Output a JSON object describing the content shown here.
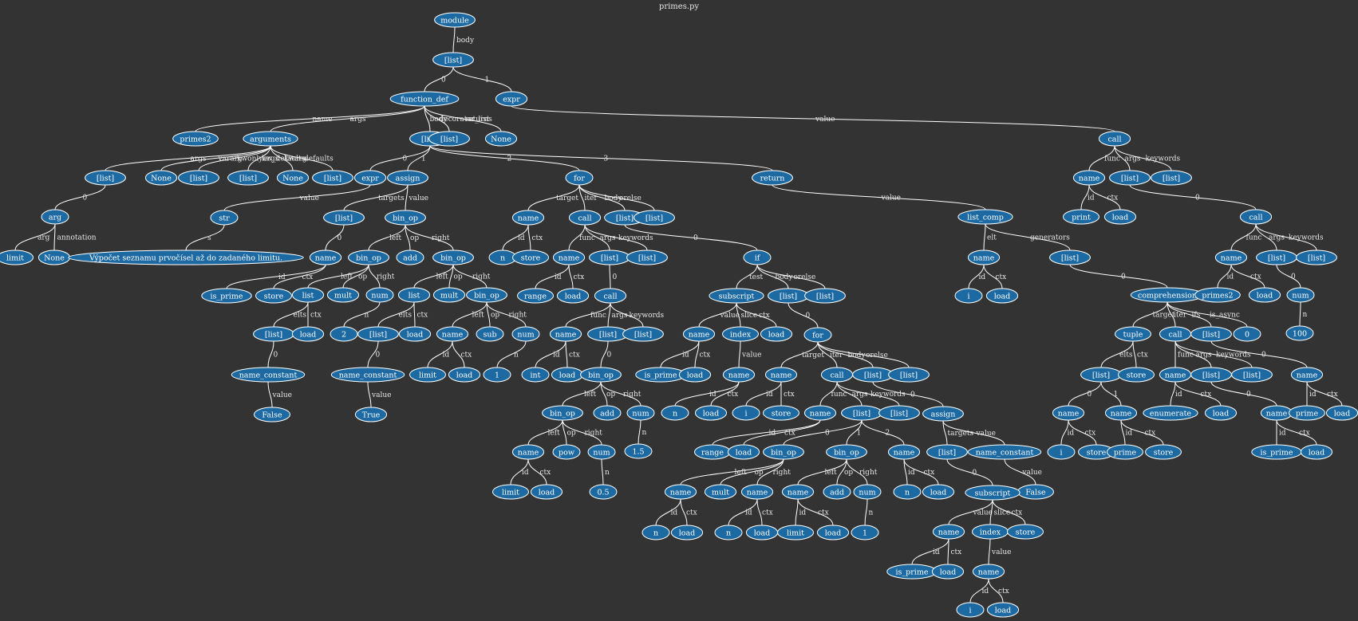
{
  "title": "primes.py",
  "colors": {
    "background": "#333333",
    "node_fill": "#1d6aa3",
    "node_stroke": "#ffffff",
    "edge": "#ffffff",
    "text": "#e6e6e6"
  },
  "nodes": {
    "n1": "module",
    "n2": "[list]",
    "n3": "function_def",
    "n4": "expr",
    "n5": "primes2",
    "n6": "arguments",
    "n7": "[list]",
    "n8": "[list]",
    "n9": "None",
    "n10": "call",
    "n11": "[list]",
    "n12": "None",
    "n13": "[list]",
    "n14": "[list]",
    "n15": "None",
    "n16": "[list]",
    "n17": "arg",
    "n18": "limit",
    "n19": "None",
    "n20": "expr",
    "n21": "assign",
    "n22": "for",
    "n23": "return",
    "n24": "str",
    "n25": "Výpočet seznamu prvočísel až do zadaného limitu.",
    "n26": "[list]",
    "n27": "bin_op",
    "n28": "name",
    "n29": "is_prime",
    "n30": "store",
    "n31": "bin_op",
    "n32": "add",
    "n33": "bin_op",
    "n34": "list",
    "n35": "mult",
    "n36": "num",
    "n37": "[list]",
    "n38": "load",
    "n39": "2",
    "n40": "name_constant",
    "n41": "False",
    "n42": "list",
    "n43": "mult",
    "n44": "bin_op",
    "n45": "[list]",
    "n46": "load",
    "n47": "name_constant",
    "n48": "True",
    "n49": "name",
    "n50": "sub",
    "n51": "num",
    "n52": "limit",
    "n53": "load",
    "n54": "1",
    "n55": "name",
    "n56": "call",
    "n57": "[list]",
    "n58": "[list]",
    "n59": "n",
    "n60": "store",
    "n61": "name",
    "n62": "[list]",
    "n63": "[list]",
    "n64": "range",
    "n65": "load",
    "n66": "call",
    "n67": "name",
    "n68": "[list]",
    "n69": "[list]",
    "n70": "int",
    "n71": "load",
    "n72": "bin_op",
    "n73": "bin_op",
    "n74": "add",
    "n75": "num",
    "n76": "name",
    "n77": "pow",
    "n78": "num",
    "n79": "limit",
    "n80": "load",
    "n81": "0.5",
    "n82": "1.5",
    "n83": "if",
    "n84": "subscript",
    "n85": "[list]",
    "n86": "[list]",
    "n87": "name",
    "n88": "index",
    "n89": "load",
    "n90": "is_prime",
    "n91": "load",
    "n92": "name",
    "n93": "n",
    "n94": "load",
    "n95": "for",
    "n96": "name",
    "n97": "call",
    "n98": "[list]",
    "n99": "[list]",
    "n100": "i",
    "n101": "store",
    "n102": "name",
    "n103": "[list]",
    "n104": "[list]",
    "n105": "range",
    "n106": "load",
    "n107": "bin_op",
    "n108": "bin_op",
    "n109": "name",
    "n110": "name",
    "n111": "mult",
    "n112": "name",
    "n113": "n",
    "n114": "load",
    "n115": "n",
    "n116": "load",
    "n117": "name",
    "n118": "add",
    "n119": "num",
    "n120": "limit",
    "n121": "load",
    "n122": "1",
    "n123": "n",
    "n124": "load",
    "n125": "assign",
    "n126": "[list]",
    "n127": "name_constant",
    "n128": "False",
    "n129": "subscript",
    "n130": "name",
    "n131": "index",
    "n132": "store",
    "n133": "is_prime",
    "n134": "load",
    "n135": "name",
    "n136": "i",
    "n137": "load",
    "n138": "list_comp",
    "n139": "name",
    "n140": "[list]",
    "n141": "i",
    "n142": "load",
    "n143": "comprehension",
    "n144": "tuple",
    "n145": "call",
    "n146": "[list]",
    "n147": "0",
    "n148": "[list]",
    "n149": "store",
    "n150": "name",
    "n151": "name",
    "n152": "i",
    "n153": "store",
    "n154": "prime",
    "n155": "store",
    "n156": "name",
    "n157": "[list]",
    "n158": "[list]",
    "n159": "enumerate",
    "n160": "load",
    "n161": "name",
    "n162": "is_prime",
    "n163": "load",
    "n164": "name",
    "n165": "prime",
    "n166": "load",
    "n167": "name",
    "n168": "[list]",
    "n169": "[list]",
    "n170": "print",
    "n171": "load",
    "n172": "call",
    "n173": "name",
    "n174": "[list]",
    "n175": "[list]",
    "n176": "primes2",
    "n177": "load",
    "n178": "num",
    "n179": "100"
  },
  "edge_labels": {
    "e1": "body",
    "e2": "0",
    "e3": "1",
    "e4": "name",
    "e5": "args",
    "e6": "body",
    "e7": "decorator_list",
    "e8": "returns",
    "e9": "value",
    "e10": "args",
    "e11": "vararg",
    "e12": "kwonlyargs",
    "e13": "kw_defaults",
    "e14": "kwarg",
    "e15": "defaults",
    "e16": "0",
    "e17": "arg",
    "e18": "annotation",
    "e19": "0",
    "e20": "1",
    "e21": "2",
    "e22": "3",
    "e23": "value",
    "e24": "s",
    "e25": "targets",
    "e26": "value",
    "e27": "0",
    "e28": "id",
    "e29": "ctx",
    "e30": "left",
    "e31": "op",
    "e32": "right",
    "e33": "left",
    "e34": "op",
    "e35": "right",
    "e36": "elts",
    "e37": "ctx",
    "e38": "n",
    "e39": "0",
    "e40": "value",
    "e41": "left",
    "e42": "op",
    "e43": "right",
    "e44": "elts",
    "e45": "ctx",
    "e46": "0",
    "e47": "value",
    "e48": "left",
    "e49": "op",
    "e50": "right",
    "e51": "id",
    "e52": "ctx",
    "e53": "n",
    "e54": "target",
    "e55": "iter",
    "e56": "body",
    "e57": "orelse",
    "e58": "id",
    "e59": "ctx",
    "e60": "func",
    "e61": "args",
    "e62": "keywords",
    "e63": "id",
    "e64": "ctx",
    "e65": "0",
    "e66": "func",
    "e67": "args",
    "e68": "keywords",
    "e69": "id",
    "e70": "ctx",
    "e71": "0",
    "e72": "left",
    "e73": "op",
    "e74": "right",
    "e75": "left",
    "e76": "op",
    "e77": "right",
    "e78": "n",
    "e79": "id",
    "e80": "ctx",
    "e81": "n",
    "e82": "0",
    "e83": "test",
    "e84": "body",
    "e85": "orelse",
    "e86": "value",
    "e87": "slice",
    "e88": "ctx",
    "e89": "0",
    "e90": "id",
    "e91": "ctx",
    "e92": "value",
    "e93": "id",
    "e94": "ctx",
    "e95": "target",
    "e96": "iter",
    "e97": "body",
    "e98": "orelse",
    "e99": "id",
    "e100": "ctx",
    "e101": "func",
    "e102": "args",
    "e103": "keywords",
    "e104": "0",
    "e105": "id",
    "e106": "ctx",
    "e107": "0",
    "e108": "1",
    "e109": "2",
    "e110": "left",
    "e111": "op",
    "e112": "right",
    "e113": "left",
    "e114": "op",
    "e115": "right",
    "e116": "id",
    "e117": "ctx",
    "e118": "id",
    "e119": "ctx",
    "e120": "id",
    "e121": "ctx",
    "e122": "n",
    "e123": "id",
    "e124": "ctx",
    "e125": "targets",
    "e126": "value",
    "e127": "0",
    "e128": "value",
    "e129": "value",
    "e130": "slice",
    "e131": "ctx",
    "e132": "id",
    "e133": "ctx",
    "e134": "value",
    "e135": "id",
    "e136": "ctx",
    "e137": "value",
    "e138": "elt",
    "e139": "generators",
    "e140": "id",
    "e141": "ctx",
    "e142": "0",
    "e143": "target",
    "e144": "iter",
    "e145": "ifs",
    "e146": "is_async",
    "e147": "elts",
    "e148": "ctx",
    "e149": "func",
    "e150": "args",
    "e151": "keywords",
    "e152": "0",
    "e153": "0",
    "e154": "1",
    "e155": "id",
    "e156": "ctx",
    "e157": "id",
    "e158": "ctx",
    "e159": "id",
    "e160": "ctx",
    "e161": "0",
    "e162": "id",
    "e163": "ctx",
    "e164": "id",
    "e165": "ctx",
    "e166": "func",
    "e167": "args",
    "e168": "keywords",
    "e169": "id",
    "e170": "ctx",
    "e171": "0",
    "e172": "func",
    "e173": "args",
    "e174": "keywords",
    "e175": "id",
    "e176": "ctx",
    "e177": "0",
    "e178": "n"
  }
}
